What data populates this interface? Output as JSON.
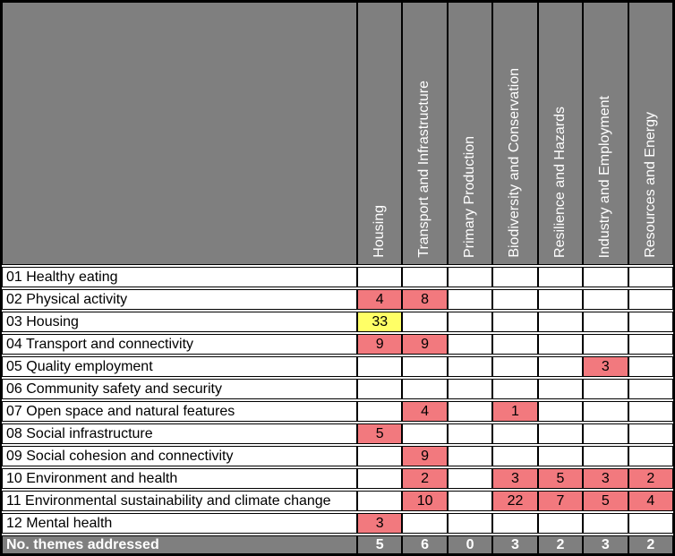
{
  "chart_data": {
    "type": "heatmap",
    "title": "",
    "x_categories": [
      "Housing",
      "Transport and Infrastructure",
      "Primary Production",
      "Biodiversity and Conservation",
      "Resilience and Hazards",
      "Industry and Employment",
      "Resources and Energy"
    ],
    "y_categories": [
      "01 Healthy eating",
      "02 Physical activity",
      "03 Housing",
      "04 Transport and connectivity",
      "05 Quality employment",
      "06 Community safety and security",
      "07 Open space and natural features",
      "08 Social infrastructure",
      "09 Social cohesion and connectivity",
      "10 Environment and health",
      "11 Environmental sustainability and climate change",
      "12 Mental health"
    ],
    "values": [
      [
        null,
        null,
        null,
        null,
        null,
        null,
        null
      ],
      [
        4,
        8,
        null,
        null,
        null,
        null,
        null
      ],
      [
        33,
        null,
        null,
        null,
        null,
        null,
        null
      ],
      [
        9,
        9,
        null,
        null,
        null,
        null,
        null
      ],
      [
        null,
        null,
        null,
        null,
        null,
        3,
        null
      ],
      [
        null,
        null,
        null,
        null,
        null,
        null,
        null
      ],
      [
        null,
        4,
        null,
        1,
        null,
        null,
        null
      ],
      [
        5,
        null,
        null,
        null,
        null,
        null,
        null
      ],
      [
        null,
        9,
        null,
        null,
        null,
        null,
        null
      ],
      [
        null,
        2,
        null,
        3,
        5,
        3,
        2
      ],
      [
        null,
        10,
        null,
        22,
        7,
        5,
        4
      ],
      [
        3,
        null,
        null,
        null,
        null,
        null,
        null
      ]
    ],
    "footer_label": "No. themes addressed",
    "footer_values": [
      5,
      6,
      0,
      3,
      2,
      3,
      2
    ],
    "special_cells": [
      {
        "row": 2,
        "col": 0,
        "color_key": "hl2"
      }
    ],
    "legend": "none",
    "grid": true
  },
  "colors": {
    "header_bg": "#7f7f7f",
    "header_text": "#ffffff",
    "cell_highlight": "#f2797e",
    "housing_self_highlight": "#ffff66",
    "grid_border": "#000000",
    "cell_bg": "#ffffff",
    "value_text": "#000000"
  }
}
